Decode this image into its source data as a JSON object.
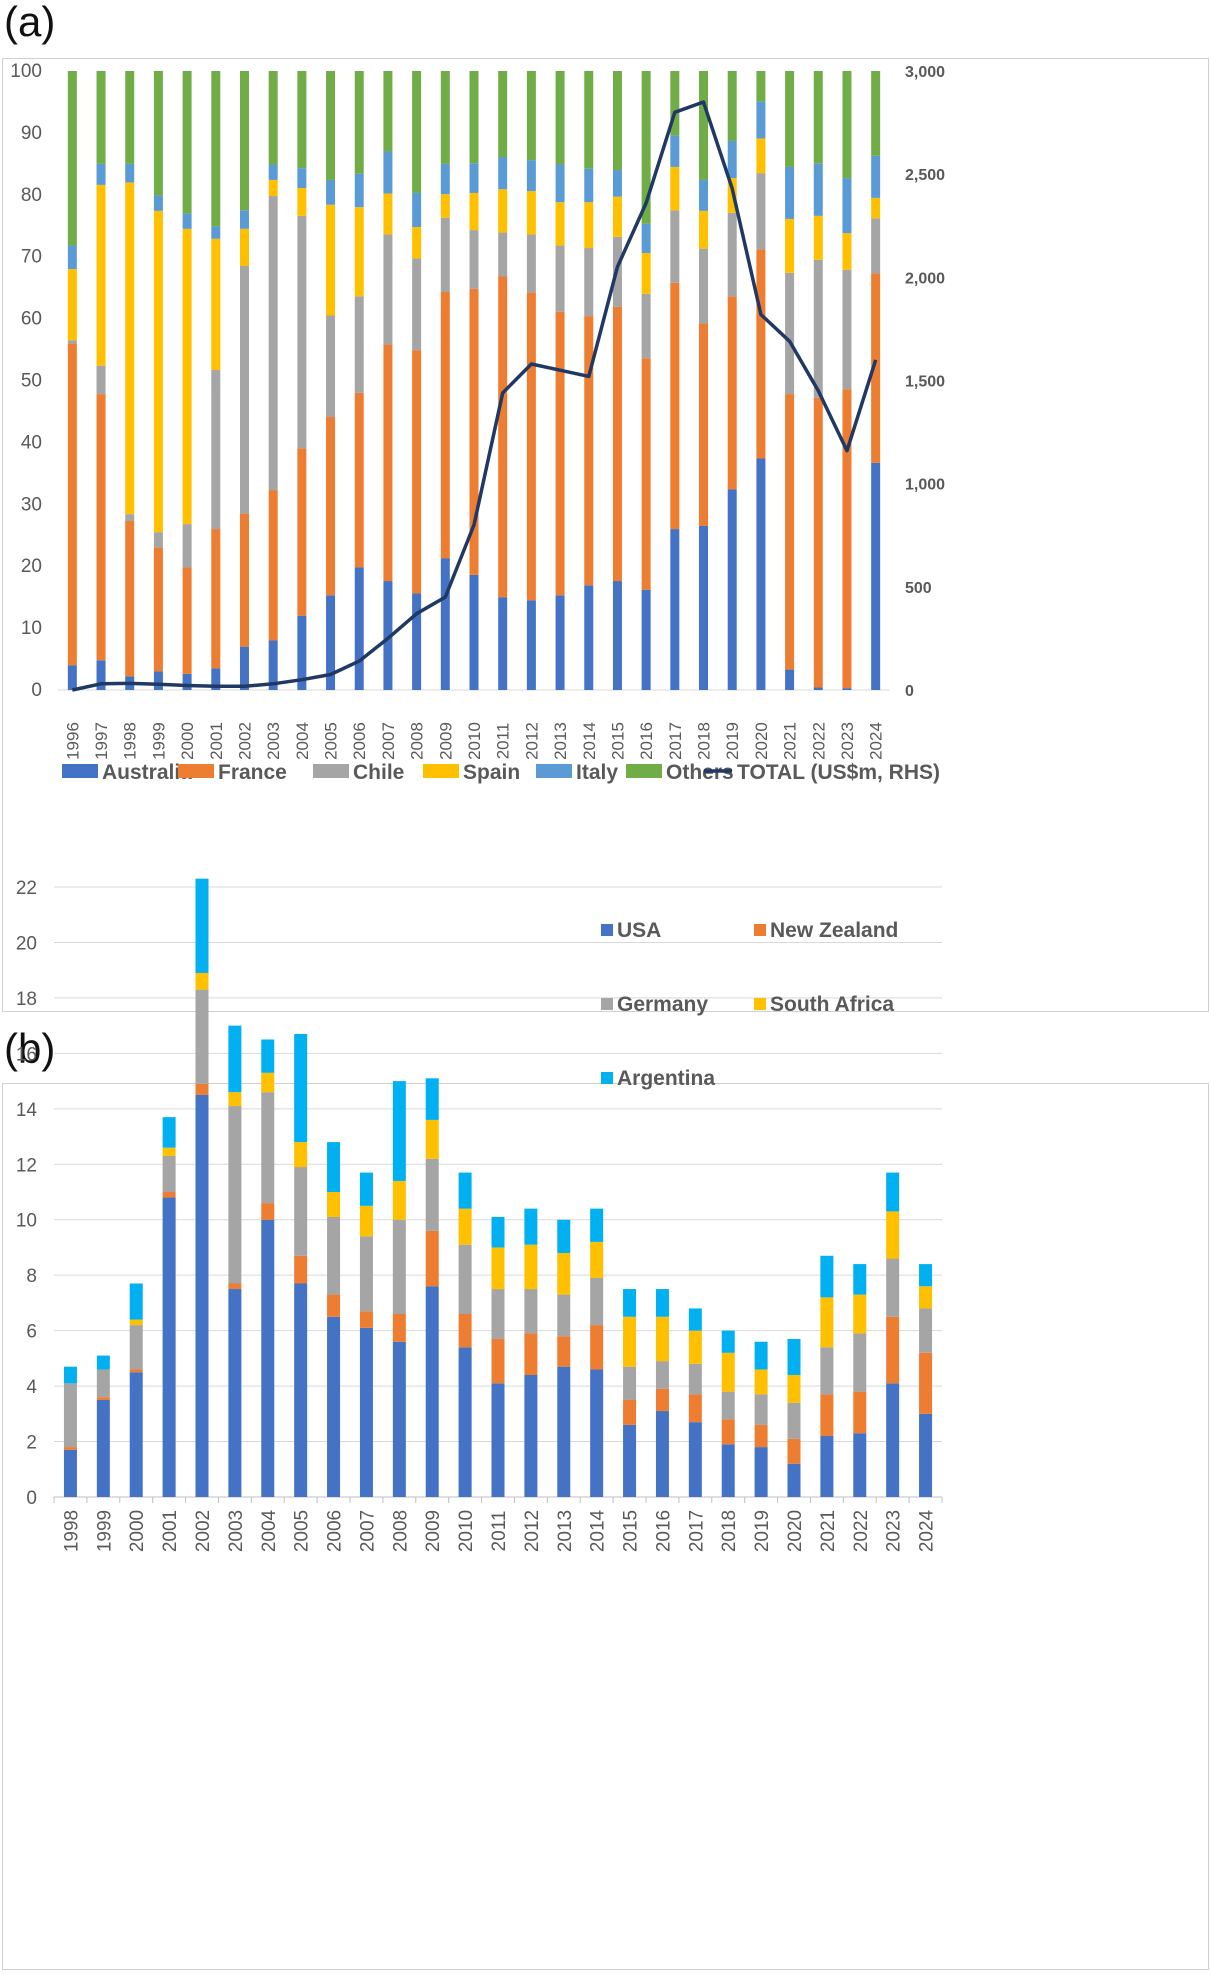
{
  "panel_a_label": "(a)",
  "panel_b_label": "(b)",
  "chart_data": [
    {
      "type": "bar",
      "stacked": true,
      "panel": "(a)",
      "categories": [
        "1996",
        "1997",
        "1998",
        "1999",
        "2000",
        "2001",
        "2002",
        "2003",
        "2004",
        "2005",
        "2006",
        "2007",
        "2008",
        "2009",
        "2010",
        "2011",
        "2012",
        "2013",
        "2014",
        "2015",
        "2016",
        "2017",
        "2018",
        "2019",
        "2020",
        "2021",
        "2022",
        "2023",
        "2024"
      ],
      "ylim": [
        0,
        100
      ],
      "yticks": [
        "0",
        "10",
        "20",
        "30",
        "40",
        "50",
        "60",
        "70",
        "80",
        "90",
        "100"
      ],
      "y2lim": [
        0,
        3000
      ],
      "y2ticks": [
        "0",
        "500",
        "1,000",
        "1,500",
        "2,000",
        "2,500",
        "3,000"
      ],
      "series": [
        {
          "name": "Australia",
          "color": "#4472c4",
          "values": [
            4,
            4.8,
            2.2,
            3,
            2.6,
            3.5,
            7,
            8,
            12,
            15.3,
            19.8,
            17.6,
            15.6,
            21.3,
            18.6,
            15,
            14.5,
            15.3,
            16.9,
            17.6,
            16.2,
            26,
            26.5,
            32.4,
            37.4,
            3.3,
            0.4,
            0.3,
            36.7
          ]
        },
        {
          "name": "France",
          "color": "#ed7d31",
          "values": [
            52,
            43,
            25.1,
            20,
            17.2,
            22.5,
            21.5,
            24.3,
            27,
            28.8,
            28.2,
            38.2,
            39.3,
            43,
            46.2,
            51.8,
            49.7,
            45.8,
            43.5,
            44.3,
            37.4,
            39.8,
            32.7,
            31.2,
            33.8,
            44.5,
            46.8,
            48.3,
            30.6
          ]
        },
        {
          "name": "Chile",
          "color": "#a5a5a5",
          "values": [
            0.5,
            4.6,
            1.1,
            2.5,
            7,
            25.7,
            40,
            47.5,
            37.6,
            16.4,
            15.6,
            17.8,
            14.8,
            12,
            9.5,
            7.1,
            9.4,
            10.7,
            11,
            11.3,
            10.4,
            11.7,
            12.1,
            13.5,
            12.3,
            19.6,
            22.3,
            19.3,
            8.9
          ]
        },
        {
          "name": "Spain",
          "color": "#ffc000",
          "values": [
            11.5,
            29.2,
            53.6,
            51.9,
            47.7,
            21.2,
            6,
            2.6,
            4.5,
            17.9,
            14.4,
            6.6,
            5.1,
            3.8,
            6,
            7,
            7,
            7,
            7.4,
            6.5,
            6.6,
            7,
            6.1,
            5.6,
            5.6,
            8.7,
            7.1,
            5.9,
            3.3
          ]
        },
        {
          "name": "Italy",
          "color": "#5b9bd5",
          "values": [
            3.8,
            3.4,
            3,
            2.5,
            2.5,
            2,
            3,
            2.5,
            3.2,
            4,
            5.4,
            6.8,
            5.5,
            4.9,
            4.8,
            5.2,
            5,
            6.1,
            5.4,
            4.3,
            4.7,
            5.1,
            5,
            6,
            6,
            8.4,
            8.5,
            8.9,
            6.8
          ]
        },
        {
          "name": "Others",
          "color": "#70ad47",
          "values": [
            28.2,
            15,
            15,
            20.1,
            23,
            25.1,
            22.5,
            15.1,
            15.7,
            17.6,
            16.6,
            13,
            19.7,
            15,
            14.9,
            13.9,
            14.4,
            15.1,
            15.8,
            16,
            24.7,
            10.4,
            17.6,
            11.3,
            4.9,
            15.5,
            14.9,
            17.3,
            13.7
          ]
        }
      ],
      "line_series": {
        "name": "TOTAL (US$m, RHS)",
        "color": "#203864",
        "values": [
          0,
          30,
          32,
          28,
          22,
          18,
          18,
          30,
          50,
          75,
          140,
          250,
          370,
          450,
          800,
          1440,
          1580,
          1550,
          1520,
          2050,
          2360,
          2800,
          2850,
          2430,
          1820,
          1690,
          1450,
          1160,
          1600
        ]
      },
      "legend_position": "bottom"
    },
    {
      "type": "bar",
      "stacked": true,
      "panel": "(b)",
      "categories": [
        "1998",
        "1999",
        "2000",
        "2001",
        "2002",
        "2003",
        "2004",
        "2005",
        "2006",
        "2007",
        "2008",
        "2009",
        "2010",
        "2011",
        "2012",
        "2013",
        "2014",
        "2015",
        "2016",
        "2017",
        "2018",
        "2019",
        "2020",
        "2021",
        "2022",
        "2023",
        "2024"
      ],
      "ylim": [
        0,
        22
      ],
      "yticks": [
        "0",
        "2",
        "4",
        "6",
        "8",
        "10",
        "12",
        "14",
        "16",
        "18",
        "20",
        "22"
      ],
      "series": [
        {
          "name": "USA",
          "color": "#4472c4",
          "values": [
            1.7,
            3.5,
            4.5,
            10.8,
            14.5,
            7.5,
            10,
            7.7,
            6.5,
            6.1,
            5.6,
            7.6,
            5.4,
            4.1,
            4.4,
            4.7,
            4.6,
            2.6,
            3.1,
            2.7,
            1.9,
            1.8,
            1.2,
            2.2,
            2.3,
            4.1,
            3
          ]
        },
        {
          "name": "New Zealand",
          "color": "#ed7d31",
          "values": [
            0.1,
            0.1,
            0.1,
            0.2,
            0.4,
            0.2,
            0.6,
            1,
            0.8,
            0.6,
            1,
            2,
            1.2,
            1.6,
            1.5,
            1.1,
            1.6,
            0.9,
            0.8,
            1,
            0.9,
            0.8,
            0.9,
            1.5,
            1.5,
            2.4,
            2.2
          ]
        },
        {
          "name": "Germany",
          "color": "#a5a5a5",
          "values": [
            2.3,
            1,
            1.6,
            1.3,
            3.4,
            6.4,
            4,
            3.2,
            2.8,
            2.7,
            3.4,
            2.6,
            2.5,
            1.8,
            1.6,
            1.5,
            1.7,
            1.2,
            1,
            1.1,
            1,
            1.1,
            1.3,
            1.7,
            2.1,
            2.1,
            1.6
          ]
        },
        {
          "name": "South Africa",
          "color": "#ffc000",
          "values": [
            0,
            0,
            0.2,
            0.3,
            0.6,
            0.5,
            0.7,
            0.9,
            0.9,
            1.1,
            1.4,
            1.4,
            1.3,
            1.5,
            1.6,
            1.5,
            1.3,
            1.8,
            1.6,
            1.2,
            1.4,
            0.9,
            1,
            1.8,
            1.4,
            1.7,
            0.8
          ]
        },
        {
          "name": "Argentina",
          "color": "#00b0f0",
          "values": [
            0.6,
            0.5,
            1.3,
            1.1,
            3.4,
            2.4,
            1.2,
            3.9,
            1.8,
            1.2,
            3.6,
            1.5,
            1.3,
            1.1,
            1.3,
            1.2,
            1.2,
            1,
            1,
            0.8,
            0.8,
            1,
            1.3,
            1.5,
            1.1,
            1.4,
            0.8
          ]
        }
      ],
      "legend_position": "top-right"
    }
  ]
}
